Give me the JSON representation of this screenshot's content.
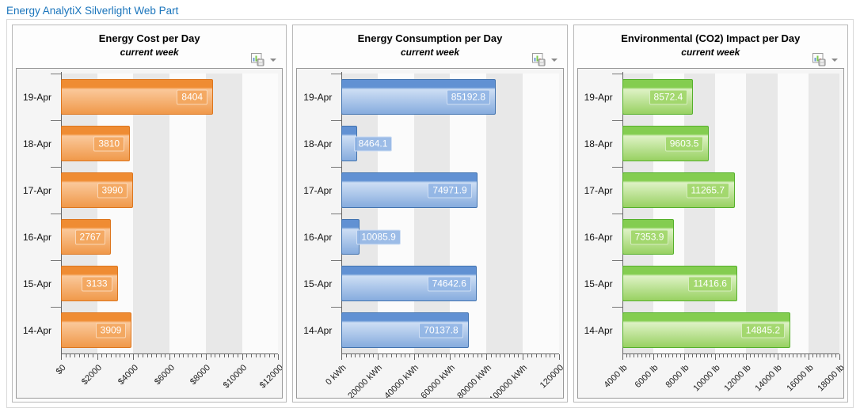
{
  "web_part_title": "Energy AnalytiX Silverlight Web Part",
  "export_button": {
    "icon": "chart-save-icon",
    "caret_icon": "chevron-down-icon"
  },
  "chart_data": [
    {
      "type": "bar",
      "orientation": "horizontal",
      "title": "Energy Cost per Day",
      "subtitle": "current week",
      "categories": [
        "19-Apr",
        "18-Apr",
        "17-Apr",
        "16-Apr",
        "15-Apr",
        "14-Apr"
      ],
      "values": [
        8404,
        3810,
        3990,
        2767,
        3133,
        3909
      ],
      "value_labels": [
        "8404",
        "3810",
        "3990",
        "2767",
        "3133",
        "3909"
      ],
      "xlim": [
        0,
        12000
      ],
      "xtick_labels": [
        "$0",
        "$2000",
        "$4000",
        "$6000",
        "$8000",
        "$10000",
        "$12000"
      ],
      "grid_bands": true,
      "legend": "none",
      "colors": {
        "border": "#dd761e",
        "top": "#ef8c33",
        "light": "#fac89a",
        "mid": "#f0994a",
        "label_bg": "rgba(243,166,94,0.9)"
      }
    },
    {
      "type": "bar",
      "orientation": "horizontal",
      "title": "Energy Consumption per Day",
      "subtitle": "current week",
      "categories": [
        "19-Apr",
        "18-Apr",
        "17-Apr",
        "16-Apr",
        "15-Apr",
        "14-Apr"
      ],
      "values": [
        85192.8,
        8464.1,
        74971.9,
        10085.9,
        74642.6,
        70137.8
      ],
      "value_labels": [
        "85192.8",
        "8464.1",
        "74971.9",
        "10085.9",
        "74642.6",
        "70137.8"
      ],
      "xlim": [
        0,
        120000
      ],
      "xtick_labels": [
        "0 kWh",
        "20000 kWh",
        "40000 kWh",
        "60000 kWh",
        "80000 kWh",
        "100000 kWh",
        "120000"
      ],
      "grid_bands": true,
      "legend": "none",
      "colors": {
        "border": "#4273af",
        "top": "#6191d3",
        "light": "#cddef4",
        "mid": "#86acde",
        "label_bg": "rgba(145,181,228,0.9)"
      }
    },
    {
      "type": "bar",
      "orientation": "horizontal",
      "title": "Environmental (CO2) Impact per Day",
      "subtitle": "current week",
      "categories": [
        "19-Apr",
        "18-Apr",
        "17-Apr",
        "16-Apr",
        "15-Apr",
        "14-Apr"
      ],
      "values": [
        8572.4,
        9603.5,
        11265.7,
        7353.9,
        11416.6,
        14845.2
      ],
      "value_labels": [
        "8572.4",
        "9603.5",
        "11265.7",
        "7353.9",
        "11416.6",
        "14845.2"
      ],
      "xlim": [
        4000,
        18000
      ],
      "xtick_labels": [
        "4000 lb",
        "6000 lb",
        "8000 lb",
        "10000 lb",
        "12000 lb",
        "14000 lb",
        "16000 lb",
        "18000 lb"
      ],
      "grid_bands": true,
      "legend": "none",
      "colors": {
        "border": "#55b02b",
        "top": "#84cd50",
        "light": "#def2c5",
        "mid": "#98d162",
        "label_bg": "rgba(160,214,105,0.9)"
      }
    }
  ]
}
